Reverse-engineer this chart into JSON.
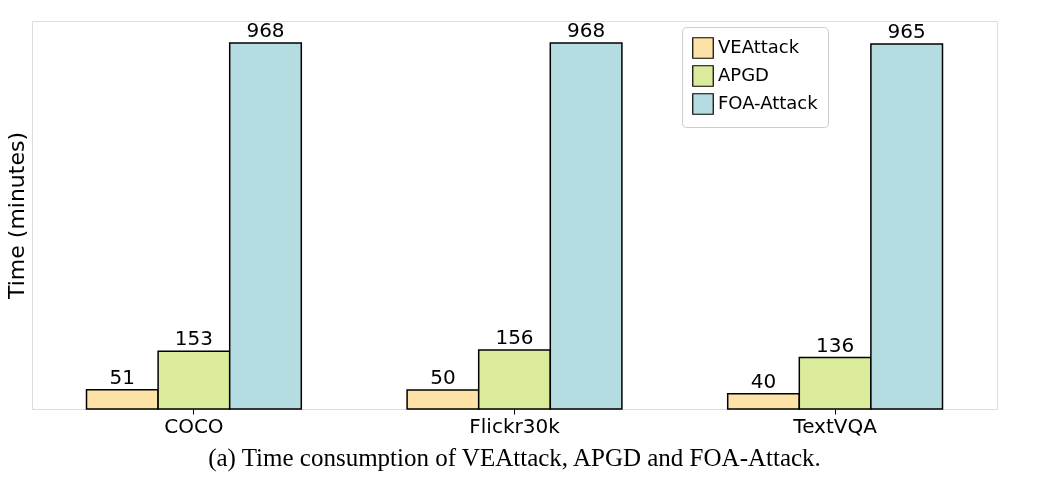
{
  "chart_data": {
    "type": "bar",
    "categories": [
      "COCO",
      "Flickr30k",
      "TextVQA"
    ],
    "ylabel": "Time (minutes)",
    "series": [
      {
        "name": "VEAttack",
        "color": "#fce2a6",
        "values": [
          51,
          50,
          40
        ]
      },
      {
        "name": "APGD",
        "color": "#dbeb9c",
        "values": [
          153,
          156,
          136
        ]
      },
      {
        "name": "FOA-Attack",
        "color": "#b5dde1",
        "values": [
          968,
          968,
          965
        ]
      }
    ],
    "data_labels": true,
    "legend": "top right",
    "grid": false,
    "tick_labels": "x",
    "annotations": [
      "(a) Time consumption of VEAttack, APGD and FOA-Attack."
    ]
  }
}
